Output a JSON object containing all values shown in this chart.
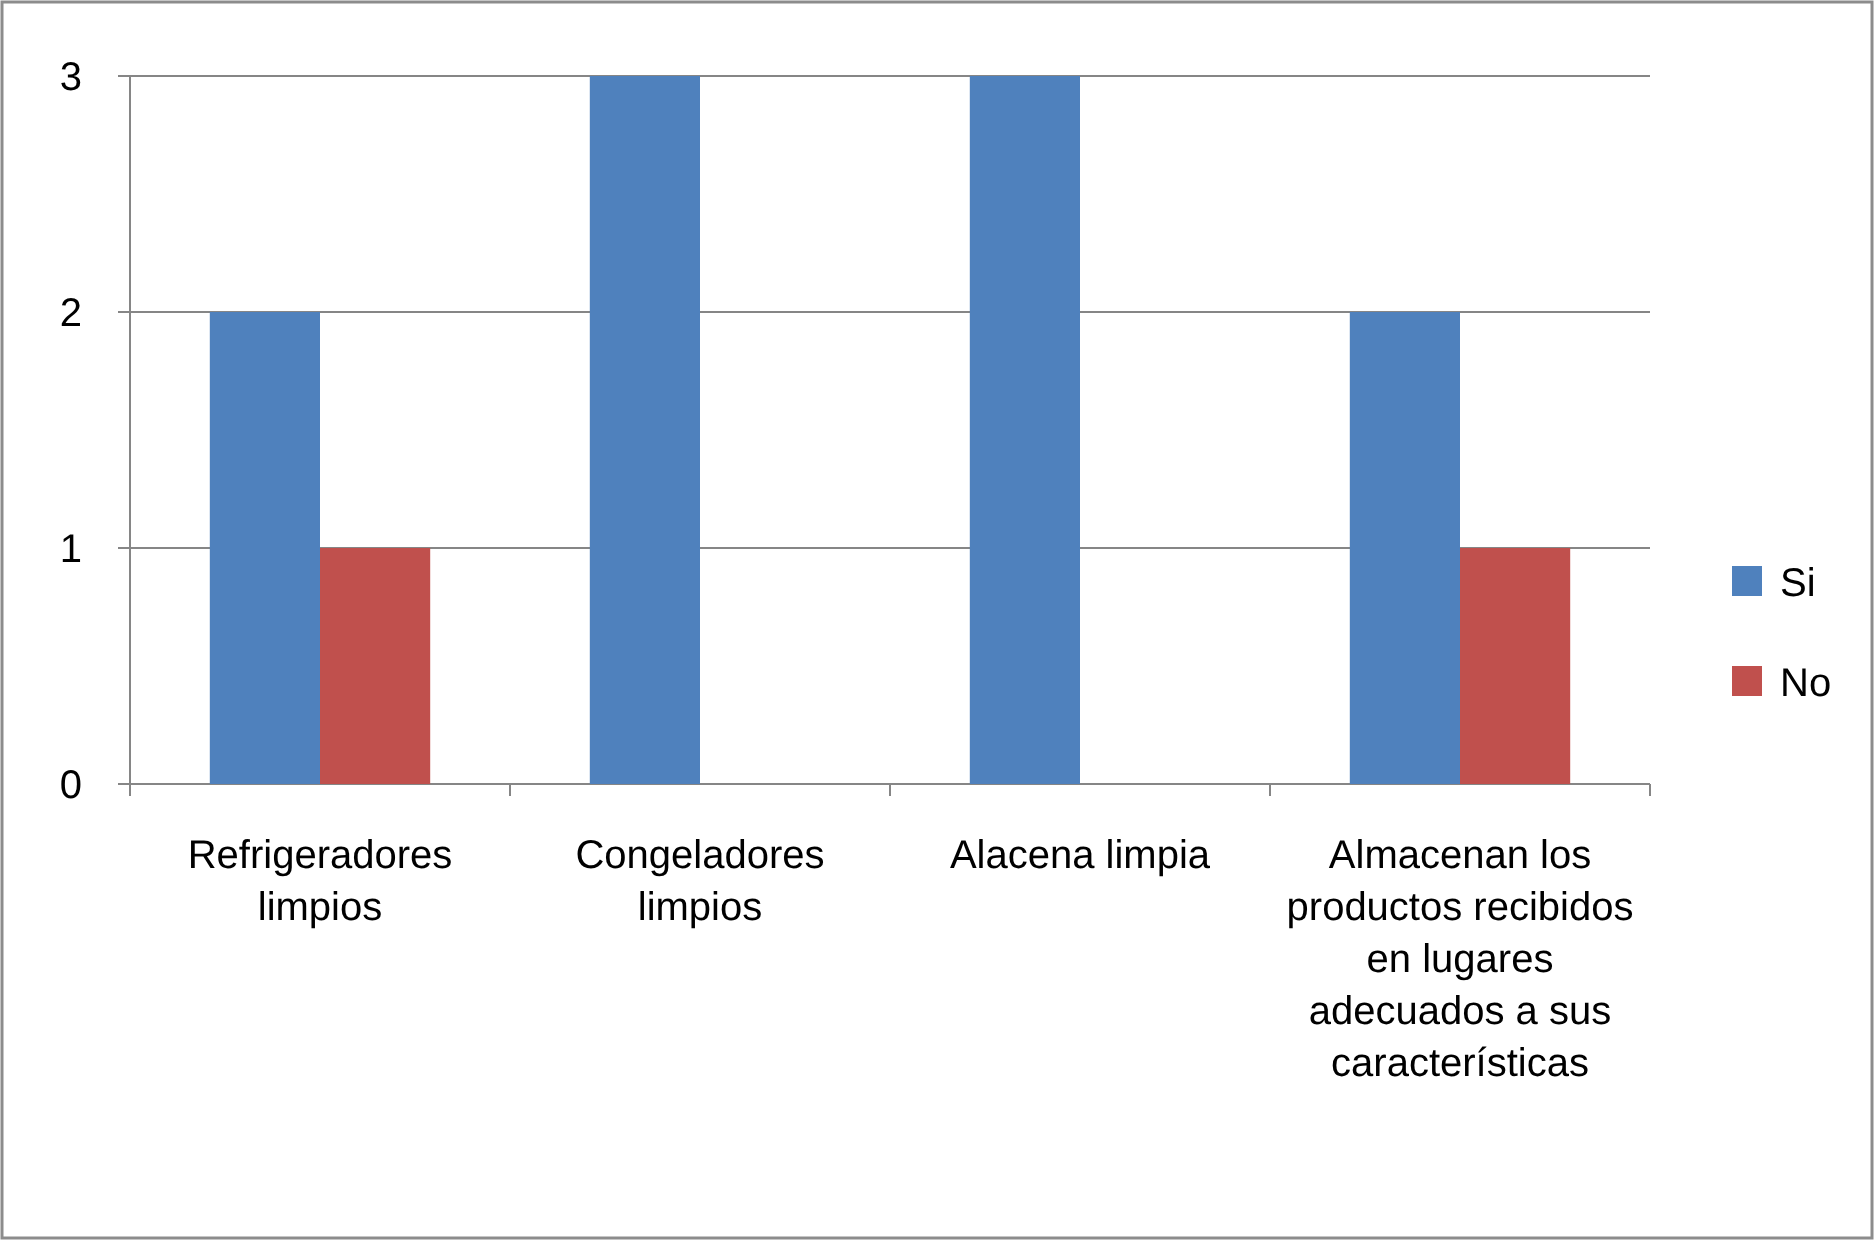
{
  "chart_data": {
    "type": "bar",
    "categories": [
      "Refrigeradores limpios",
      "Congeladores limpios",
      "Alacena limpia",
      "Almacenan  los productos recibidos en lugares adecuados a sus características"
    ],
    "series": [
      {
        "name": "Si",
        "color": "#4f81bd",
        "values": [
          2,
          3,
          3,
          2
        ]
      },
      {
        "name": "No",
        "color": "#c0504d",
        "values": [
          1,
          0,
          0,
          1
        ]
      }
    ],
    "ylim": [
      0,
      3
    ],
    "yticks": [
      0,
      1,
      2,
      3
    ],
    "grid": "y",
    "legend": "right"
  }
}
